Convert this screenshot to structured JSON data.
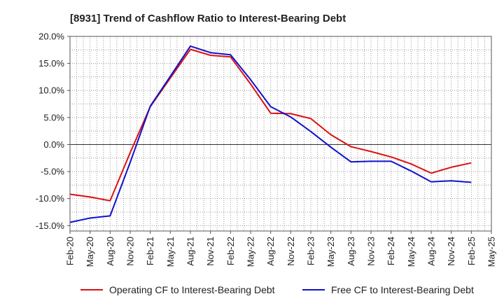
{
  "chart_data": {
    "type": "line",
    "title": "[8931]  Trend of Cashflow Ratio to Interest-Bearing Debt",
    "xlabel": "",
    "ylabel": "",
    "x": [
      "Feb-20",
      "May-20",
      "Aug-20",
      "Nov-20",
      "Feb-21",
      "May-21",
      "Aug-21",
      "Nov-21",
      "Feb-22",
      "May-22",
      "Aug-22",
      "Nov-22",
      "Feb-23",
      "May-23",
      "Aug-23",
      "Nov-23",
      "Feb-24",
      "May-24",
      "Aug-24",
      "Nov-24",
      "Feb-25",
      "May-25"
    ],
    "ylim": [
      -16,
      20
    ],
    "yticks": [
      20,
      15,
      10,
      5,
      0,
      -5,
      -10,
      -15
    ],
    "ytick_labels": [
      "20.0%",
      "15.0%",
      "10.0%",
      "5.0%",
      "0.0%",
      "-5.0%",
      "-10.0%",
      "-15.0%"
    ],
    "grid": true,
    "legend_position": "bottom",
    "series": [
      {
        "name": "Operating CF to Interest-Bearing Debt",
        "color": "#dd1111",
        "values": [
          -9.2,
          -9.7,
          -10.4,
          -1.5,
          7.0,
          12.3,
          17.6,
          16.5,
          16.2,
          11.2,
          5.8,
          5.7,
          4.8,
          1.8,
          -0.4,
          -1.3,
          -2.3,
          -3.6,
          -5.3,
          -4.2,
          -3.4,
          null
        ]
      },
      {
        "name": "Free CF to Interest-Bearing Debt",
        "color": "#1111cc",
        "values": [
          -14.4,
          -13.6,
          -13.2,
          -3.3,
          7.1,
          12.6,
          18.2,
          17.0,
          16.6,
          12.0,
          7.0,
          5.1,
          2.4,
          -0.5,
          -3.2,
          -3.1,
          -3.1,
          -4.9,
          -6.9,
          -6.7,
          -7.0,
          null
        ]
      }
    ]
  }
}
